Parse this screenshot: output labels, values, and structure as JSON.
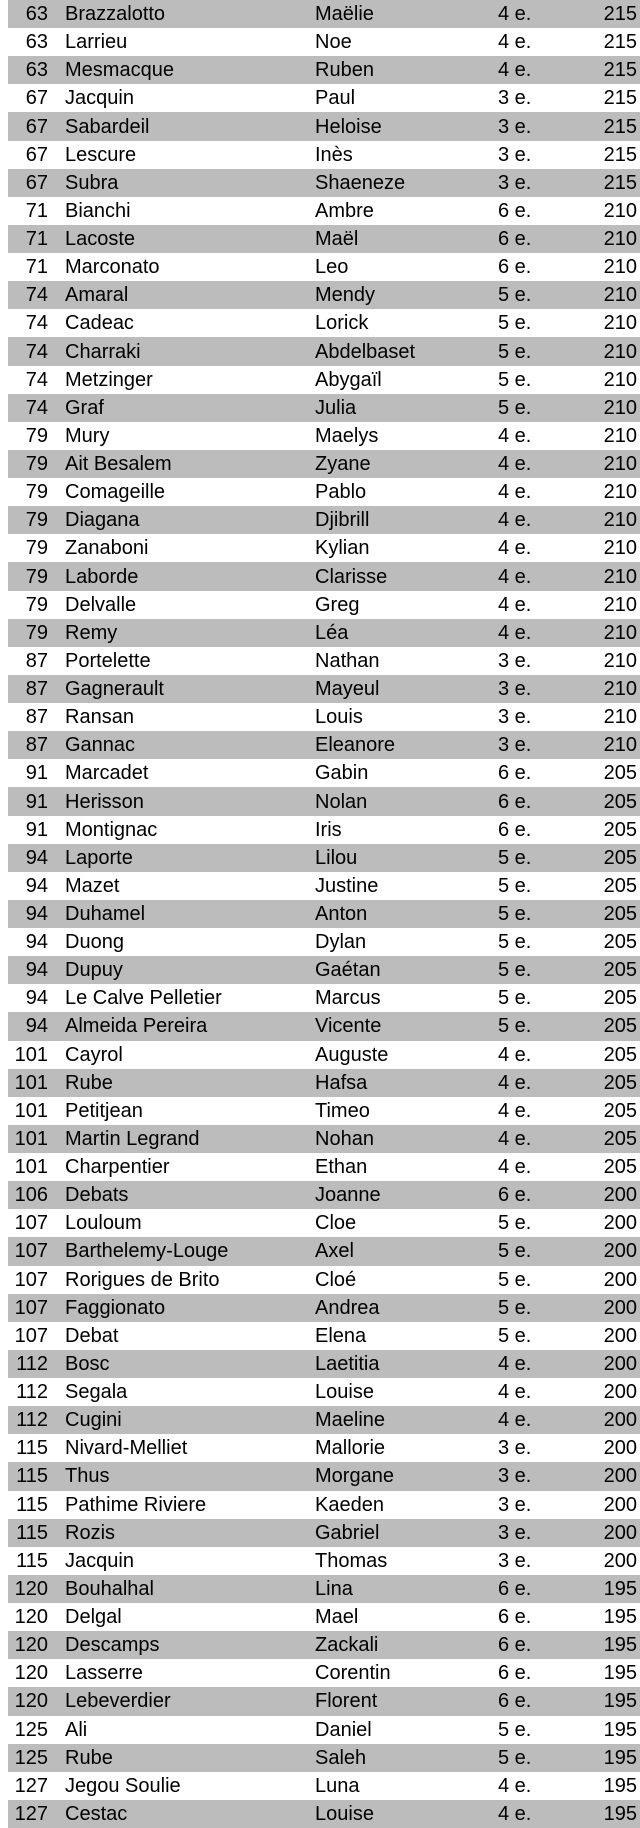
{
  "colors": {
    "row_shaded": "#bcbcbc",
    "row_plain": "#ffffff",
    "text": "#000000"
  },
  "table": {
    "columns": [
      "rank",
      "last_name",
      "first_name",
      "class",
      "score"
    ],
    "rows": [
      {
        "rank": "63",
        "last": "Brazzalotto",
        "first": "Maëlie",
        "class": "4 e.",
        "score": "215"
      },
      {
        "rank": "63",
        "last": "Larrieu",
        "first": "Noe",
        "class": "4 e.",
        "score": "215"
      },
      {
        "rank": "63",
        "last": "Mesmacque",
        "first": "Ruben",
        "class": "4 e.",
        "score": "215"
      },
      {
        "rank": "67",
        "last": "Jacquin",
        "first": "Paul",
        "class": "3 e.",
        "score": "215"
      },
      {
        "rank": "67",
        "last": "Sabardeil",
        "first": "Heloise",
        "class": "3 e.",
        "score": "215"
      },
      {
        "rank": "67",
        "last": "Lescure",
        "first": "Inès",
        "class": "3 e.",
        "score": "215"
      },
      {
        "rank": "67",
        "last": "Subra",
        "first": "Shaeneze",
        "class": "3 e.",
        "score": "215"
      },
      {
        "rank": "71",
        "last": "Bianchi",
        "first": "Ambre",
        "class": "6 e.",
        "score": "210"
      },
      {
        "rank": "71",
        "last": "Lacoste",
        "first": "Maël",
        "class": "6 e.",
        "score": "210"
      },
      {
        "rank": "71",
        "last": "Marconato",
        "first": "Leo",
        "class": "6 e.",
        "score": "210"
      },
      {
        "rank": "74",
        "last": "Amaral",
        "first": "Mendy",
        "class": "5 e.",
        "score": "210"
      },
      {
        "rank": "74",
        "last": "Cadeac",
        "first": "Lorick",
        "class": "5 e.",
        "score": "210"
      },
      {
        "rank": "74",
        "last": "Charraki",
        "first": "Abdelbaset",
        "class": "5 e.",
        "score": "210"
      },
      {
        "rank": "74",
        "last": "Metzinger",
        "first": "Abygaïl",
        "class": "5 e.",
        "score": "210"
      },
      {
        "rank": "74",
        "last": "Graf",
        "first": "Julia",
        "class": "5 e.",
        "score": "210"
      },
      {
        "rank": "79",
        "last": "Mury",
        "first": "Maelys",
        "class": "4 e.",
        "score": "210"
      },
      {
        "rank": "79",
        "last": "Ait Besalem",
        "first": "Zyane",
        "class": "4 e.",
        "score": "210"
      },
      {
        "rank": "79",
        "last": "Comageille",
        "first": "Pablo",
        "class": "4 e.",
        "score": "210"
      },
      {
        "rank": "79",
        "last": "Diagana",
        "first": "Djibrill",
        "class": "4 e.",
        "score": "210"
      },
      {
        "rank": "79",
        "last": "Zanaboni",
        "first": "Kylian",
        "class": "4 e.",
        "score": "210"
      },
      {
        "rank": "79",
        "last": "Laborde",
        "first": "Clarisse",
        "class": "4 e.",
        "score": "210"
      },
      {
        "rank": "79",
        "last": "Delvalle",
        "first": "Greg",
        "class": "4 e.",
        "score": "210"
      },
      {
        "rank": "79",
        "last": "Remy",
        "first": "Léa",
        "class": "4 e.",
        "score": "210"
      },
      {
        "rank": "87",
        "last": "Portelette",
        "first": "Nathan",
        "class": "3 e.",
        "score": "210"
      },
      {
        "rank": "87",
        "last": "Gagnerault",
        "first": "Mayeul",
        "class": "3 e.",
        "score": "210"
      },
      {
        "rank": "87",
        "last": "Ransan",
        "first": "Louis",
        "class": "3 e.",
        "score": "210"
      },
      {
        "rank": "87",
        "last": "Gannac",
        "first": "Eleanore",
        "class": "3 e.",
        "score": "210"
      },
      {
        "rank": "91",
        "last": "Marcadet",
        "first": "Gabin",
        "class": "6 e.",
        "score": "205"
      },
      {
        "rank": "91",
        "last": "Herisson",
        "first": "Nolan",
        "class": "6 e.",
        "score": "205"
      },
      {
        "rank": "91",
        "last": "Montignac",
        "first": "Iris",
        "class": "6 e.",
        "score": "205"
      },
      {
        "rank": "94",
        "last": "Laporte",
        "first": "Lilou",
        "class": "5 e.",
        "score": "205"
      },
      {
        "rank": "94",
        "last": "Mazet",
        "first": "Justine",
        "class": "5 e.",
        "score": "205"
      },
      {
        "rank": "94",
        "last": "Duhamel",
        "first": "Anton",
        "class": "5 e.",
        "score": "205"
      },
      {
        "rank": "94",
        "last": "Duong",
        "first": "Dylan",
        "class": "5 e.",
        "score": "205"
      },
      {
        "rank": "94",
        "last": "Dupuy",
        "first": "Gaétan",
        "class": "5 e.",
        "score": "205"
      },
      {
        "rank": "94",
        "last": "Le Calve Pelletier",
        "first": "Marcus",
        "class": "5 e.",
        "score": "205"
      },
      {
        "rank": "94",
        "last": "Almeida Pereira",
        "first": "Vicente",
        "class": "5 e.",
        "score": "205"
      },
      {
        "rank": "101",
        "last": "Cayrol",
        "first": "Auguste",
        "class": "4 e.",
        "score": "205"
      },
      {
        "rank": "101",
        "last": "Rube",
        "first": "Hafsa",
        "class": "4 e.",
        "score": "205"
      },
      {
        "rank": "101",
        "last": "Petitjean",
        "first": "Timeo",
        "class": "4 e.",
        "score": "205"
      },
      {
        "rank": "101",
        "last": "Martin Legrand",
        "first": "Nohan",
        "class": "4 e.",
        "score": "205"
      },
      {
        "rank": "101",
        "last": "Charpentier",
        "first": "Ethan",
        "class": "4 e.",
        "score": "205"
      },
      {
        "rank": "106",
        "last": "Debats",
        "first": "Joanne",
        "class": "6 e.",
        "score": "200"
      },
      {
        "rank": "107",
        "last": "Louloum",
        "first": "Cloe",
        "class": "5 e.",
        "score": "200"
      },
      {
        "rank": "107",
        "last": "Barthelemy-Louge",
        "first": "Axel",
        "class": "5 e.",
        "score": "200"
      },
      {
        "rank": "107",
        "last": "Rorigues de Brito",
        "first": "Cloé",
        "class": "5 e.",
        "score": "200"
      },
      {
        "rank": "107",
        "last": "Faggionato",
        "first": "Andrea",
        "class": "5 e.",
        "score": "200"
      },
      {
        "rank": "107",
        "last": "Debat",
        "first": "Elena",
        "class": "5 e.",
        "score": "200"
      },
      {
        "rank": "112",
        "last": "Bosc",
        "first": "Laetitia",
        "class": "4 e.",
        "score": "200"
      },
      {
        "rank": "112",
        "last": "Segala",
        "first": "Louise",
        "class": "4 e.",
        "score": "200"
      },
      {
        "rank": "112",
        "last": "Cugini",
        "first": "Maeline",
        "class": "4 e.",
        "score": "200"
      },
      {
        "rank": "115",
        "last": "Nivard-Melliet",
        "first": "Mallorie",
        "class": "3 e.",
        "score": "200"
      },
      {
        "rank": "115",
        "last": "Thus",
        "first": "Morgane",
        "class": "3 e.",
        "score": "200"
      },
      {
        "rank": "115",
        "last": "Pathime Riviere",
        "first": "Kaeden",
        "class": "3 e.",
        "score": "200"
      },
      {
        "rank": "115",
        "last": "Rozis",
        "first": "Gabriel",
        "class": "3 e.",
        "score": "200"
      },
      {
        "rank": "115",
        "last": "Jacquin",
        "first": "Thomas",
        "class": "3 e.",
        "score": "200"
      },
      {
        "rank": "120",
        "last": "Bouhalhal",
        "first": "Lina",
        "class": "6 e.",
        "score": "195"
      },
      {
        "rank": "120",
        "last": "Delgal",
        "first": "Mael",
        "class": "6 e.",
        "score": "195"
      },
      {
        "rank": "120",
        "last": "Descamps",
        "first": "Zackali",
        "class": "6 e.",
        "score": "195"
      },
      {
        "rank": "120",
        "last": "Lasserre",
        "first": "Corentin",
        "class": "6 e.",
        "score": "195"
      },
      {
        "rank": "120",
        "last": "Lebeverdier",
        "first": "Florent",
        "class": "6 e.",
        "score": "195"
      },
      {
        "rank": "125",
        "last": "Ali",
        "first": "Daniel",
        "class": "5 e.",
        "score": "195"
      },
      {
        "rank": "125",
        "last": "Rube",
        "first": "Saleh",
        "class": "5 e.",
        "score": "195"
      },
      {
        "rank": "127",
        "last": "Jegou Soulie",
        "first": "Luna",
        "class": "4 e.",
        "score": "195"
      },
      {
        "rank": "127",
        "last": "Cestac",
        "first": "Louise",
        "class": "4 e.",
        "score": "195"
      }
    ]
  }
}
